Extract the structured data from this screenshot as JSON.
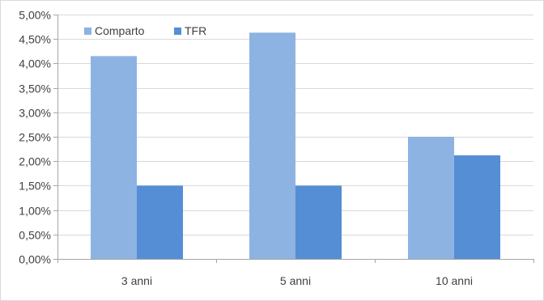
{
  "chart_data": {
    "type": "bar",
    "title": "",
    "xlabel": "",
    "ylabel": "",
    "categories": [
      "3 anni",
      "5 anni",
      "10 anni"
    ],
    "series": [
      {
        "name": "Comparto",
        "values": [
          4.15,
          4.63,
          2.5
        ],
        "color": "#8DB3E2"
      },
      {
        "name": "TFR",
        "values": [
          1.5,
          1.5,
          2.12
        ],
        "color": "#558ED5"
      }
    ],
    "ylim": [
      0,
      5
    ],
    "yticks": [
      0,
      0.5,
      1,
      1.5,
      2,
      2.5,
      3,
      3.5,
      4,
      4.5,
      5
    ],
    "ytick_labels": [
      "0,00%",
      "0,50%",
      "1,00%",
      "1,50%",
      "2,00%",
      "2,50%",
      "3,00%",
      "3,50%",
      "4,00%",
      "4,50%",
      "5,00%"
    ],
    "grid": true,
    "legend_position": "top-left",
    "gridline_color": "#d9d9d9",
    "axis_color": "#a6a6a6"
  }
}
